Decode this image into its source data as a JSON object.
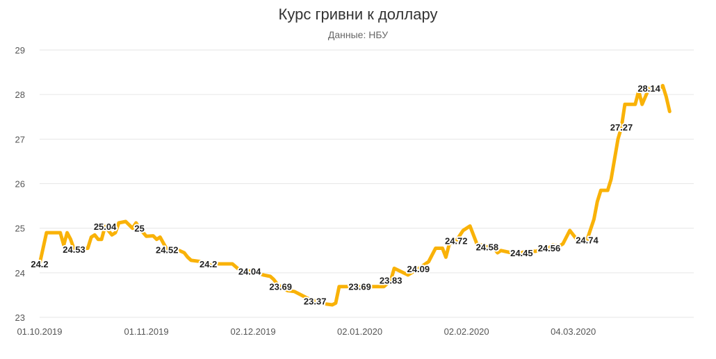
{
  "chart_data": {
    "type": "line",
    "title": "Курс гривни к доллару",
    "subtitle": "Данные: НБУ",
    "xlabel": "",
    "ylabel": "",
    "ylim": [
      23,
      29
    ],
    "y_ticks": [
      23,
      24,
      25,
      26,
      27,
      28,
      29
    ],
    "x_range": [
      "2019-10-01",
      "2020-04-08"
    ],
    "x_ticks": [
      {
        "date": "2019-10-01",
        "label": "01.10.2019"
      },
      {
        "date": "2019-11-01",
        "label": "01.11.2019"
      },
      {
        "date": "2019-12-02",
        "label": "02.12.2019"
      },
      {
        "date": "2020-01-02",
        "label": "02.01.2020"
      },
      {
        "date": "2020-02-02",
        "label": "02.02.2020"
      },
      {
        "date": "2020-03-04",
        "label": "04.03.2020"
      }
    ],
    "grid": "horizontal",
    "line_color": "#F9B208",
    "series": [
      {
        "values": [
          [
            "2019-10-01",
            24.2
          ],
          [
            "2019-10-03",
            24.9
          ],
          [
            "2019-10-07",
            24.9
          ],
          [
            "2019-10-08",
            24.62
          ],
          [
            "2019-10-09",
            24.9
          ],
          [
            "2019-10-10",
            24.75
          ],
          [
            "2019-10-11",
            24.53
          ],
          [
            "2019-10-15",
            24.55
          ],
          [
            "2019-10-16",
            24.8
          ],
          [
            "2019-10-17",
            24.85
          ],
          [
            "2019-10-18",
            24.75
          ],
          [
            "2019-10-19",
            24.75
          ],
          [
            "2019-10-20",
            25.04
          ],
          [
            "2019-10-22",
            24.85
          ],
          [
            "2019-10-23",
            24.9
          ],
          [
            "2019-10-24",
            25.12
          ],
          [
            "2019-10-26",
            25.15
          ],
          [
            "2019-10-28",
            25.0
          ],
          [
            "2019-10-29",
            25.12
          ],
          [
            "2019-10-30",
            25.0
          ],
          [
            "2019-11-01",
            24.82
          ],
          [
            "2019-11-03",
            24.83
          ],
          [
            "2019-11-04",
            24.75
          ],
          [
            "2019-11-05",
            24.8
          ],
          [
            "2019-11-07",
            24.52
          ],
          [
            "2019-11-10",
            24.52
          ],
          [
            "2019-11-12",
            24.45
          ],
          [
            "2019-11-13",
            24.35
          ],
          [
            "2019-11-14",
            24.28
          ],
          [
            "2019-11-17",
            24.25
          ],
          [
            "2019-11-19",
            24.2
          ],
          [
            "2019-11-20",
            24.15
          ],
          [
            "2019-11-21",
            24.2
          ],
          [
            "2019-11-26",
            24.2
          ],
          [
            "2019-11-29",
            24.0
          ],
          [
            "2019-12-01",
            24.04
          ],
          [
            "2019-12-03",
            24.0
          ],
          [
            "2019-12-05",
            23.95
          ],
          [
            "2019-12-07",
            23.92
          ],
          [
            "2019-12-08",
            23.85
          ],
          [
            "2019-12-09",
            23.75
          ],
          [
            "2019-12-10",
            23.69
          ],
          [
            "2019-12-12",
            23.6
          ],
          [
            "2019-12-14",
            23.58
          ],
          [
            "2019-12-16",
            23.5
          ],
          [
            "2019-12-18",
            23.42
          ],
          [
            "2019-12-20",
            23.37
          ],
          [
            "2019-12-23",
            23.3
          ],
          [
            "2019-12-25",
            23.28
          ],
          [
            "2019-12-26",
            23.32
          ],
          [
            "2019-12-27",
            23.69
          ],
          [
            "2020-01-02",
            23.69
          ],
          [
            "2020-01-04",
            23.69
          ],
          [
            "2020-01-07",
            23.69
          ],
          [
            "2020-01-09",
            23.69
          ],
          [
            "2020-01-11",
            23.83
          ],
          [
            "2020-01-12",
            24.1
          ],
          [
            "2020-01-16",
            23.95
          ],
          [
            "2020-01-17",
            24.0
          ],
          [
            "2020-01-19",
            24.09
          ],
          [
            "2020-01-22",
            24.25
          ],
          [
            "2020-01-24",
            24.55
          ],
          [
            "2020-01-26",
            24.55
          ],
          [
            "2020-01-27",
            24.35
          ],
          [
            "2020-01-28",
            24.65
          ],
          [
            "2020-01-30",
            24.72
          ],
          [
            "2020-02-01",
            24.95
          ],
          [
            "2020-02-03",
            25.05
          ],
          [
            "2020-02-05",
            24.65
          ],
          [
            "2020-02-08",
            24.58
          ],
          [
            "2020-02-10",
            24.55
          ],
          [
            "2020-02-11",
            24.45
          ],
          [
            "2020-02-12",
            24.5
          ],
          [
            "2020-02-15",
            24.45
          ],
          [
            "2020-02-18",
            24.45
          ],
          [
            "2020-02-20",
            24.5
          ],
          [
            "2020-02-22",
            24.48
          ],
          [
            "2020-02-24",
            24.52
          ],
          [
            "2020-02-26",
            24.56
          ],
          [
            "2020-02-27",
            24.62
          ],
          [
            "2020-02-29",
            24.6
          ],
          [
            "2020-03-01",
            24.65
          ],
          [
            "2020-03-03",
            24.95
          ],
          [
            "2020-03-05",
            24.75
          ],
          [
            "2020-03-08",
            24.74
          ],
          [
            "2020-03-10",
            25.2
          ],
          [
            "2020-03-11",
            25.6
          ],
          [
            "2020-03-12",
            25.85
          ],
          [
            "2020-03-14",
            25.85
          ],
          [
            "2020-03-15",
            26.1
          ],
          [
            "2020-03-17",
            27.0
          ],
          [
            "2020-03-18",
            27.27
          ],
          [
            "2020-03-19",
            27.78
          ],
          [
            "2020-03-22",
            27.78
          ],
          [
            "2020-03-23",
            28.08
          ],
          [
            "2020-03-24",
            27.78
          ],
          [
            "2020-03-26",
            28.14
          ],
          [
            "2020-03-29",
            28.14
          ],
          [
            "2020-03-30",
            28.2
          ],
          [
            "2020-03-31",
            27.95
          ],
          [
            "2020-04-01",
            27.62
          ]
        ]
      }
    ],
    "data_labels": [
      {
        "date": "2019-10-01",
        "value": "24.2"
      },
      {
        "date": "2019-10-11",
        "value": "24.53"
      },
      {
        "date": "2019-10-20",
        "value": "25.04"
      },
      {
        "date": "2019-10-30",
        "value": "25"
      },
      {
        "date": "2019-11-07",
        "value": "24.52"
      },
      {
        "date": "2019-11-19",
        "value": "24.2"
      },
      {
        "date": "2019-12-01",
        "value": "24.04"
      },
      {
        "date": "2019-12-10",
        "value": "23.69"
      },
      {
        "date": "2019-12-20",
        "value": "23.37"
      },
      {
        "date": "2020-01-02",
        "value": "23.69"
      },
      {
        "date": "2020-01-11",
        "value": "23.83"
      },
      {
        "date": "2020-01-19",
        "value": "24.09"
      },
      {
        "date": "2020-01-30",
        "value": "24.72"
      },
      {
        "date": "2020-02-08",
        "value": "24.58"
      },
      {
        "date": "2020-02-18",
        "value": "24.45"
      },
      {
        "date": "2020-02-26",
        "value": "24.56"
      },
      {
        "date": "2020-03-08",
        "value": "24.74"
      },
      {
        "date": "2020-03-18",
        "value": "27.27"
      },
      {
        "date": "2020-03-26",
        "value": "28.14"
      }
    ]
  }
}
